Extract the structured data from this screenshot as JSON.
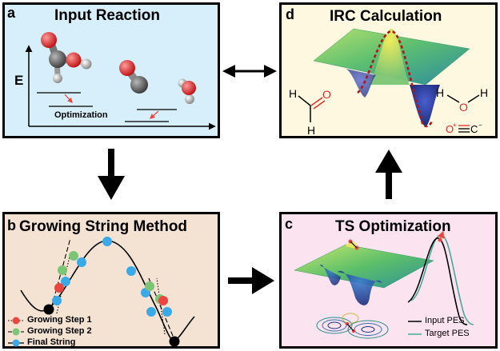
{
  "panels": {
    "a": {
      "letter": "a",
      "title": "Input Reaction",
      "energy_axis": "E",
      "optimization": "Optimization"
    },
    "b": {
      "letter": "b",
      "title": "Growing String Method",
      "legend": [
        "Growing Step 1",
        "Growing Step 2",
        "Final String"
      ]
    },
    "c": {
      "letter": "c",
      "title": "TS Optimization",
      "legend": [
        "Input PES",
        "Target PES"
      ]
    },
    "d": {
      "letter": "d",
      "title": "IRC Calculation"
    }
  },
  "colors": {
    "step1": "#e8463f",
    "step2": "#7cc576",
    "final": "#3aa9e8",
    "target_pes": "#4aa89a",
    "atom_o": "#e42a2a",
    "atom_c": "#666666",
    "atom_h": "#d9d9d9"
  }
}
